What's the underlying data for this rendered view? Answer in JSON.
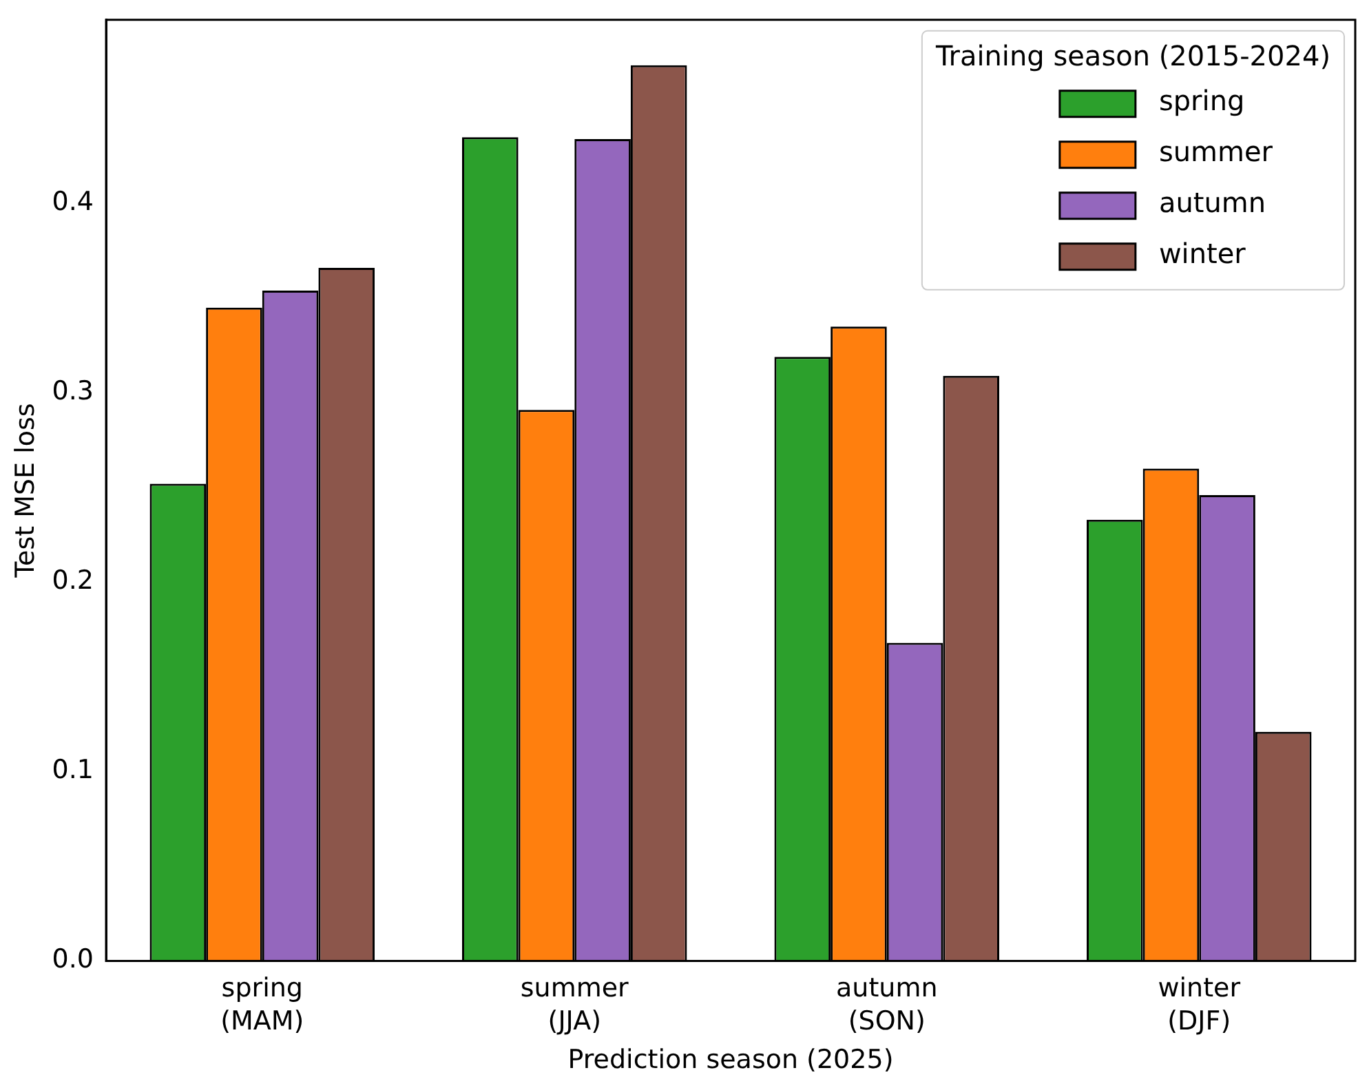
{
  "chart_data": {
    "type": "bar",
    "xlabel": "Prediction season (2025)",
    "ylabel": "Test MSE loss",
    "legend_title": "Training season (2015-2024)",
    "categories": [
      "spring\n(MAM)",
      "summer\n(JJA)",
      "autumn\n(SON)",
      "winter\n(DJF)"
    ],
    "series": [
      {
        "name": "spring",
        "color": "#2ca02c",
        "values": [
          0.252,
          0.435,
          0.319,
          0.233
        ]
      },
      {
        "name": "summer",
        "color": "#ff7f0e",
        "values": [
          0.345,
          0.291,
          0.335,
          0.26
        ]
      },
      {
        "name": "autumn",
        "color": "#9467bd",
        "values": [
          0.354,
          0.434,
          0.168,
          0.246
        ]
      },
      {
        "name": "winter",
        "color": "#8c564b",
        "values": [
          0.366,
          0.473,
          0.309,
          0.121
        ]
      }
    ],
    "ylim": [
      0,
      0.497
    ],
    "yticks": [
      {
        "value": 0,
        "label": "0.0"
      },
      0.1,
      0.2,
      0.3,
      0.4
    ],
    "grid": false,
    "legend": "top right"
  }
}
